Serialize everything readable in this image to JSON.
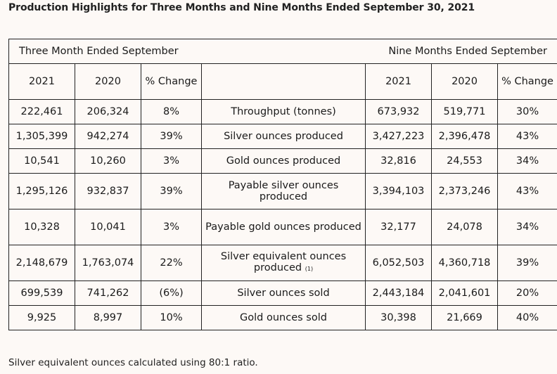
{
  "title": "Production Highlights for Three Months and Nine Months Ended September 30, 2021",
  "group_headers": {
    "left": "Three Month Ended September",
    "right": "Nine Months Ended September"
  },
  "column_headers": {
    "left_2021": "2021",
    "left_2020": "2020",
    "left_change": "% Change",
    "right_2021": "2021",
    "right_2020": "2020",
    "right_change": "% Change"
  },
  "rows": [
    {
      "label": "Throughput (tonnes)",
      "q_2021": "222,461",
      "q_2020": "206,324",
      "q_change": "8%",
      "n_2021": "673,932",
      "n_2020": "519,771",
      "n_change": "30%"
    },
    {
      "label": "Silver ounces produced",
      "q_2021": "1,305,399",
      "q_2020": "942,274",
      "q_change": "39%",
      "n_2021": "3,427,223",
      "n_2020": "2,396,478",
      "n_change": "43%"
    },
    {
      "label": "Gold ounces produced",
      "q_2021": "10,541",
      "q_2020": "10,260",
      "q_change": "3%",
      "n_2021": "32,816",
      "n_2020": "24,553",
      "n_change": "34%"
    },
    {
      "label": "Payable silver ounces produced",
      "q_2021": "1,295,126",
      "q_2020": "932,837",
      "q_change": "39%",
      "n_2021": "3,394,103",
      "n_2020": "2,373,246",
      "n_change": "43%"
    },
    {
      "label": "Payable gold ounces produced",
      "q_2021": "10,328",
      "q_2020": "10,041",
      "q_change": "3%",
      "n_2021": "32,177",
      "n_2020": "24,078",
      "n_change": "34%"
    },
    {
      "label": "Silver equivalent ounces produced",
      "footnote": "(1)",
      "q_2021": "2,148,679",
      "q_2020": "1,763,074",
      "q_change": "22%",
      "n_2021": "6,052,503",
      "n_2020": "4,360,718",
      "n_change": "39%"
    },
    {
      "label": "Silver ounces sold",
      "q_2021": "699,539",
      "q_2020": "741,262",
      "q_change": "(6%)",
      "n_2021": "2,443,184",
      "n_2020": "2,041,601",
      "n_change": "20%"
    },
    {
      "label": "Gold ounces sold",
      "q_2021": "9,925",
      "q_2020": "8,997",
      "q_change": "10%",
      "n_2021": "30,398",
      "n_2020": "21,669",
      "n_change": "40%"
    }
  ],
  "footnote_text": "Silver equivalent ounces calculated using 80:1 ratio."
}
